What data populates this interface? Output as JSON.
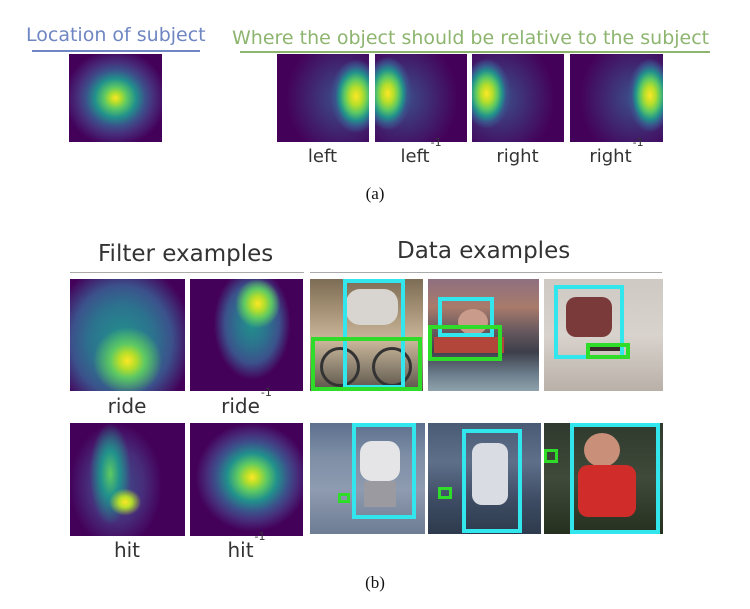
{
  "part_a": {
    "subject_header": "Location of subject",
    "object_header": "Where the object should be relative to the subject",
    "labels": [
      {
        "base": "left",
        "inverse": ""
      },
      {
        "base": "left",
        "inverse": "-1"
      },
      {
        "base": "right",
        "inverse": ""
      },
      {
        "base": "right",
        "inverse": "-1"
      }
    ],
    "caption": "(a)"
  },
  "part_b": {
    "filter_header": "Filter examples",
    "data_header": "Data examples",
    "filter_labels": [
      {
        "base": "ride",
        "inverse": ""
      },
      {
        "base": "ride",
        "inverse": "-1"
      },
      {
        "base": "hit",
        "inverse": ""
      },
      {
        "base": "hit",
        "inverse": "-1"
      }
    ],
    "caption": "(b)"
  },
  "colors": {
    "heat_low": "#44015a",
    "heat_mid": "#21918c",
    "heat_high": "#fde725",
    "subject_box": "#32e6ee",
    "object_box": "#2fdc2a",
    "header_blue": "#6f86c2",
    "header_green": "#8db56f"
  }
}
